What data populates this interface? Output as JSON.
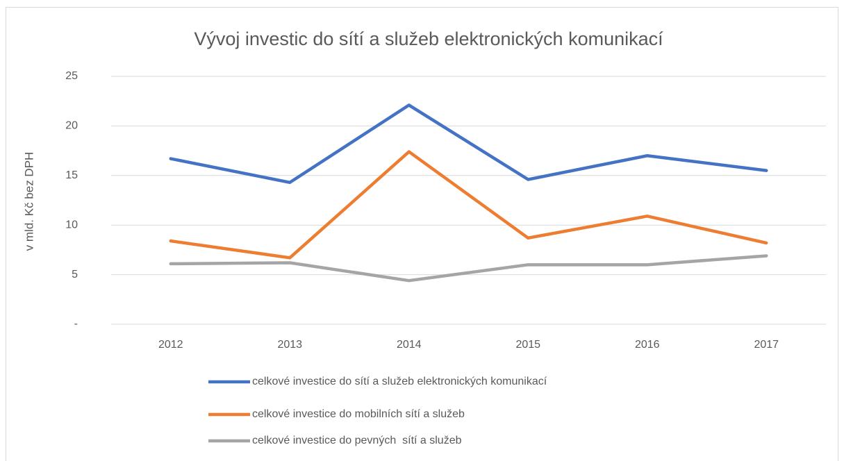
{
  "chart_data": {
    "type": "line",
    "title": "Vývoj investic do sítí a služeb elektronických komunikací",
    "y_label": "v mld. Kč bez DPH",
    "categories": [
      "2012",
      "2013",
      "2014",
      "2015",
      "2016",
      "2017"
    ],
    "series": [
      {
        "name": "celkové investice do sítí a služeb elektronických komunikací",
        "color": "#4472c4",
        "values": [
          16.7,
          14.3,
          22.1,
          14.6,
          17.0,
          15.5
        ]
      },
      {
        "name": "celkové investice do mobilních sítí a služeb",
        "color": "#ed7d31",
        "values": [
          8.4,
          6.7,
          17.4,
          8.7,
          10.9,
          8.2
        ]
      },
      {
        "name": "celkové investice do pevných  sítí a služeb",
        "color": "#a5a5a5",
        "values": [
          6.1,
          6.2,
          4.4,
          6.0,
          6.0,
          6.9
        ]
      }
    ],
    "ylim": [
      0,
      25
    ],
    "yticks": [
      {
        "value": 0,
        "label": "-"
      },
      5,
      10,
      15,
      20,
      25
    ],
    "grid": true,
    "legend": "bottom"
  }
}
